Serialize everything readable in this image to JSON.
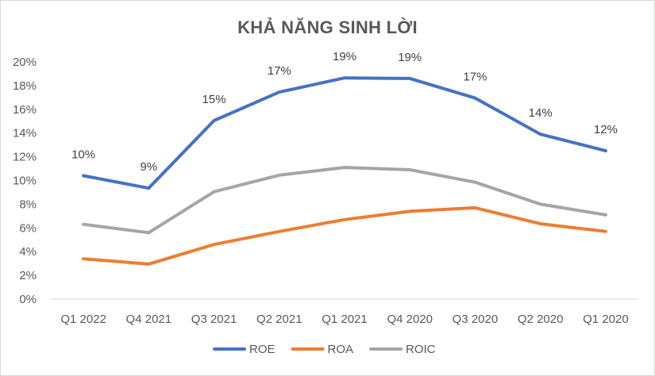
{
  "chart_data": {
    "type": "line",
    "title": "KHẢ NĂNG SINH LỜI",
    "categories": [
      "Q1 2022",
      "Q4 2021",
      "Q3 2021",
      "Q2 2021",
      "Q1 2021",
      "Q4 2020",
      "Q3 2020",
      "Q2 2020",
      "Q1 2020"
    ],
    "series": [
      {
        "name": "ROE",
        "color": "#4472c4",
        "values": [
          10.4,
          9.35,
          15.05,
          17.45,
          18.65,
          18.6,
          16.95,
          13.9,
          12.5
        ],
        "data_labels": [
          "10%",
          "9%",
          "15%",
          "17%",
          "19%",
          "19%",
          "17%",
          "14%",
          "12%"
        ]
      },
      {
        "name": "ROA",
        "color": "#ed7d31",
        "values": [
          3.4,
          2.95,
          4.6,
          5.7,
          6.7,
          7.4,
          7.7,
          6.35,
          5.7
        ]
      },
      {
        "name": "ROIC",
        "color": "#a5a5a5",
        "values": [
          6.3,
          5.6,
          9.05,
          10.45,
          11.1,
          10.9,
          9.85,
          8.0,
          7.1
        ]
      }
    ],
    "y_ticks": [
      "0%",
      "2%",
      "4%",
      "6%",
      "8%",
      "10%",
      "12%",
      "14%",
      "16%",
      "18%",
      "20%"
    ],
    "ylim": [
      0,
      20
    ],
    "grid": false,
    "legend_position": "bottom"
  }
}
